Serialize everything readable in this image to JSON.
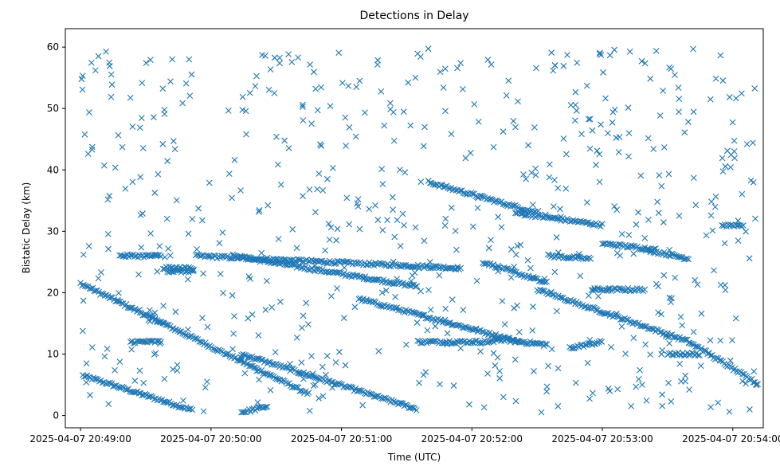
{
  "chart_data": {
    "type": "scatter",
    "title": "Detections in Delay",
    "xlabel": "Time (UTC)",
    "ylabel": "Bistatic Delay (km)",
    "x_ticks": [
      "2025-04-07 20:49:00",
      "2025-04-07 20:50:00",
      "2025-04-07 20:51:00",
      "2025-04-07 20:52:00",
      "2025-04-07 20:53:00",
      "2025-04-07 20:54:00"
    ],
    "y_ticks": [
      0,
      10,
      20,
      30,
      40,
      50,
      60
    ],
    "xlim": [
      "2025-04-07 20:48:53",
      "2025-04-07 20:54:14"
    ],
    "ylim": [
      -2,
      63
    ],
    "marker": "x",
    "color": "#1f77b4",
    "grid": false,
    "tracks": [
      {
        "start": "2025-04-07 20:49:01",
        "end": "2025-04-07 20:49:52",
        "delay_start": 6.5,
        "delay_end": 0.8
      },
      {
        "start": "2025-04-07 20:49:00",
        "end": "2025-04-07 20:50:45",
        "delay_start": 21.5,
        "delay_end": 3.5
      },
      {
        "start": "2025-04-07 20:49:53",
        "end": "2025-04-07 20:51:55",
        "delay_start": 26.0,
        "delay_end": 24.0
      },
      {
        "start": "2025-04-07 20:50:10",
        "end": "2025-04-07 20:51:35",
        "delay_start": 26.0,
        "delay_end": 21.0
      },
      {
        "start": "2025-04-07 20:50:14",
        "end": "2025-04-07 20:51:35",
        "delay_start": 10.0,
        "delay_end": 1.0
      },
      {
        "start": "2025-04-07 20:50:14",
        "end": "2025-04-07 20:50:26",
        "delay_start": 0.5,
        "delay_end": 1.5
      },
      {
        "start": "2025-04-07 20:51:08",
        "end": "2025-04-07 20:52:22",
        "delay_start": 19.0,
        "delay_end": 12.0
      },
      {
        "start": "2025-04-07 20:51:35",
        "end": "2025-04-07 20:52:10",
        "delay_start": 12.0,
        "delay_end": 12.0
      },
      {
        "start": "2025-04-07 20:51:40",
        "end": "2025-04-07 20:52:30",
        "delay_start": 38.0,
        "delay_end": 33.0
      },
      {
        "start": "2025-04-07 20:52:05",
        "end": "2025-04-07 20:52:35",
        "delay_start": 25.0,
        "delay_end": 21.5
      },
      {
        "start": "2025-04-07 20:52:10",
        "end": "2025-04-07 20:52:35",
        "delay_start": 12.5,
        "delay_end": 11.5
      },
      {
        "start": "2025-04-07 20:52:20",
        "end": "2025-04-07 20:53:00",
        "delay_start": 33.0,
        "delay_end": 31.0
      },
      {
        "start": "2025-04-07 20:52:30",
        "end": "2025-04-07 20:52:55",
        "delay_start": 20.5,
        "delay_end": 17.5
      },
      {
        "start": "2025-04-07 20:52:35",
        "end": "2025-04-07 20:52:55",
        "delay_start": 26.0,
        "delay_end": 25.5
      },
      {
        "start": "2025-04-07 20:52:45",
        "end": "2025-04-07 20:53:00",
        "delay_start": 11.0,
        "delay_end": 12.0
      },
      {
        "start": "2025-04-07 20:52:55",
        "end": "2025-04-07 20:53:20",
        "delay_start": 20.5,
        "delay_end": 20.5
      },
      {
        "start": "2025-04-07 20:52:55",
        "end": "2025-04-07 20:53:40",
        "delay_start": 17.5,
        "delay_end": 12.0
      },
      {
        "start": "2025-04-07 20:53:00",
        "end": "2025-04-07 20:53:25",
        "delay_start": 28.0,
        "delay_end": 27.0
      },
      {
        "start": "2025-04-07 20:53:20",
        "end": "2025-04-07 20:53:40",
        "delay_start": 27.0,
        "delay_end": 25.5
      },
      {
        "start": "2025-04-07 20:53:40",
        "end": "2025-04-07 20:54:12",
        "delay_start": 12.0,
        "delay_end": 5.0
      },
      {
        "start": "2025-04-07 20:53:55",
        "end": "2025-04-07 20:54:05",
        "delay_start": 31.0,
        "delay_end": 31.0
      },
      {
        "start": "2025-04-07 20:53:30",
        "end": "2025-04-07 20:53:45",
        "delay_start": 10.0,
        "delay_end": 10.0
      },
      {
        "start": "2025-04-07 20:49:18",
        "end": "2025-04-07 20:49:37",
        "delay_start": 26.0,
        "delay_end": 26.0
      },
      {
        "start": "2025-04-07 20:49:23",
        "end": "2025-04-07 20:49:37",
        "delay_start": 12.0,
        "delay_end": 12.0
      },
      {
        "start": "2025-04-07 20:49:38",
        "end": "2025-04-07 20:49:52",
        "delay_start": 24.0,
        "delay_end": 24.0
      },
      {
        "start": "2025-04-07 20:49:40",
        "end": "2025-04-07 20:49:52",
        "delay_start": 23.5,
        "delay_end": 23.5
      }
    ]
  }
}
